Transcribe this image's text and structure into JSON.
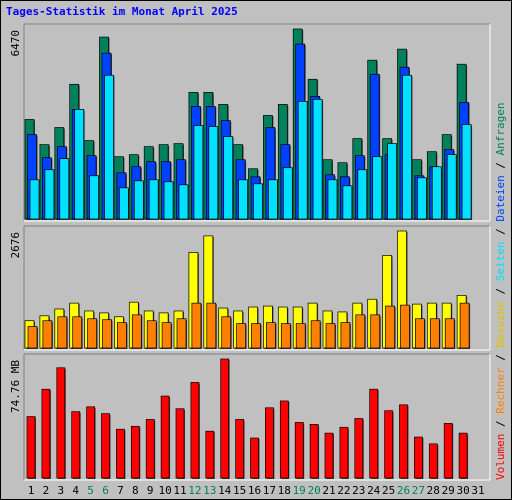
{
  "chart_data": [
    {
      "type": "bar",
      "title": "Tages-Statistik im Monat April 2025",
      "ylim": [
        0,
        6470
      ],
      "yticks": [
        6470
      ],
      "series": [
        {
          "name": "Anfragen",
          "color": "#00805c",
          "values": [
            3389,
            2533,
            3115,
            4587,
            2670,
            6196,
            2122,
            2191,
            2465,
            2533,
            2567,
            4313,
            4313,
            3902,
            2533,
            1712,
            3526,
            3902,
            6470,
            4758,
            2020,
            1917,
            2738,
            5408,
            2738,
            5785,
            2020,
            2293,
            2875,
            5271,
            null
          ]
        },
        {
          "name": "Dateien",
          "color": "#0040ff",
          "values": [
            2875,
            2088,
            2465,
            3731,
            2157,
            5648,
            1575,
            1780,
            1951,
            1951,
            2020,
            3834,
            3834,
            3355,
            2020,
            1438,
            3115,
            2533,
            5956,
            4176,
            1506,
            1438,
            2157,
            4929,
            2191,
            5169,
            1472,
            1780,
            2362,
            3971,
            null
          ]
        },
        {
          "name": "Seiten",
          "color": "#00e0ff",
          "values": [
            1335,
            1677,
            2054,
            3731,
            1472,
            4895,
            1061,
            1301,
            1335,
            1267,
            1164,
            3183,
            3149,
            2807,
            1335,
            1198,
            1335,
            1746,
            4005,
            4073,
            1335,
            1130,
            1677,
            2122,
            2567,
            4895,
            1403,
            1780,
            2191,
            3218,
            null
          ]
        }
      ]
    },
    {
      "type": "bar",
      "ylim": [
        0,
        2676
      ],
      "yticks": [
        2676
      ],
      "series": [
        {
          "name": "Besuche",
          "color": "#ffff00",
          "values": [
            624,
            736,
            892,
            1026,
            847,
            803,
            714,
            1048,
            847,
            803,
            847,
            2185,
            2564,
            914,
            847,
            937,
            959,
            937,
            937,
            1026,
            847,
            825,
            1026,
            1115,
            2118,
            2676,
            1004,
            1026,
            1026,
            1204,
            null
          ]
        },
        {
          "name": "Rechner",
          "color": "#ff8000",
          "values": [
            491,
            624,
            714,
            714,
            669,
            647,
            580,
            758,
            624,
            580,
            669,
            1026,
            1026,
            714,
            558,
            558,
            580,
            558,
            558,
            624,
            558,
            580,
            758,
            758,
            959,
            981,
            669,
            669,
            669,
            1026,
            null
          ]
        }
      ]
    },
    {
      "type": "bar",
      "ylim": [
        0,
        74.76
      ],
      "yticks": [
        {
          "value": 74.76,
          "label": "74.76 MB"
        }
      ],
      "series": [
        {
          "name": "Volumen",
          "color": "#ff0000",
          "values": [
            38.6,
            55.77,
            69.25,
            41.67,
            44.73,
            40.45,
            30.64,
            32.48,
            36.77,
            51.48,
            43.51,
            60.05,
            29.41,
            74.76,
            36.77,
            25.12,
            44.12,
            48.41,
            34.93,
            33.7,
            28.19,
            31.87,
            37.38,
            55.77,
            42.28,
            45.96,
            25.74,
            21.45,
            34.32,
            28.19,
            null
          ]
        }
      ],
      "categories": [
        "1",
        "2",
        "3",
        "4",
        "5",
        "6",
        "7",
        "8",
        "9",
        "10",
        "11",
        "12",
        "13",
        "14",
        "15",
        "16",
        "17",
        "18",
        "19",
        "20",
        "21",
        "22",
        "23",
        "24",
        "25",
        "26",
        "27",
        "28",
        "29",
        "30",
        "31"
      ],
      "category_colors": [
        "#000",
        "#000",
        "#000",
        "#000",
        "#00805c",
        "#00805c",
        "#000",
        "#000",
        "#000",
        "#000",
        "#000",
        "#00805c",
        "#00805c",
        "#000",
        "#000",
        "#000",
        "#000",
        "#000",
        "#00805c",
        "#00805c",
        "#000",
        "#000",
        "#000",
        "#000",
        "#000",
        "#00805c",
        "#00805c",
        "#000",
        "#000",
        "#000",
        "#000"
      ],
      "legend_separator": " / "
    }
  ]
}
